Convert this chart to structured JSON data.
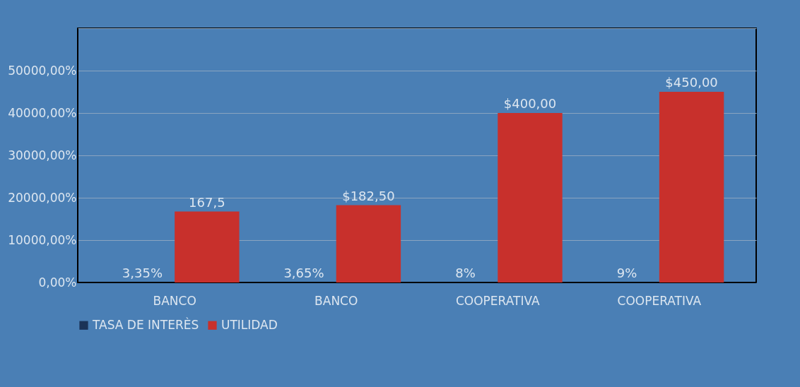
{
  "chart_data": {
    "type": "bar",
    "categories": [
      "BANCO",
      "BANCO",
      "COOPERATIVA",
      "COOPERATIVA"
    ],
    "series": [
      {
        "name": "TASA DE INTERÈS",
        "color": "#1b3357",
        "values": [
          0.0335,
          0.0365,
          0.08,
          0.09
        ],
        "value_labels": [
          "3,35%",
          "3,65%",
          "8%",
          "9%"
        ]
      },
      {
        "name": "UTILIDAD",
        "color": "#c8302c",
        "values": [
          167.5,
          182.5,
          400,
          450
        ],
        "value_labels": [
          "167,5",
          "$182,50",
          "$400,00",
          "$450,00"
        ]
      }
    ],
    "ylim": [
      0,
      600
    ],
    "yticks": [
      {
        "value": 0,
        "label": "0,00%"
      },
      {
        "value": 100,
        "label": "10000,00%"
      },
      {
        "value": 200,
        "label": "20000,00%"
      },
      {
        "value": 300,
        "label": "30000,00%"
      },
      {
        "value": 400,
        "label": "40000,00%"
      },
      {
        "value": 500,
        "label": "50000,00%"
      },
      {
        "value": 600,
        "label": null
      }
    ],
    "grid": "y",
    "legend": "bottom"
  }
}
